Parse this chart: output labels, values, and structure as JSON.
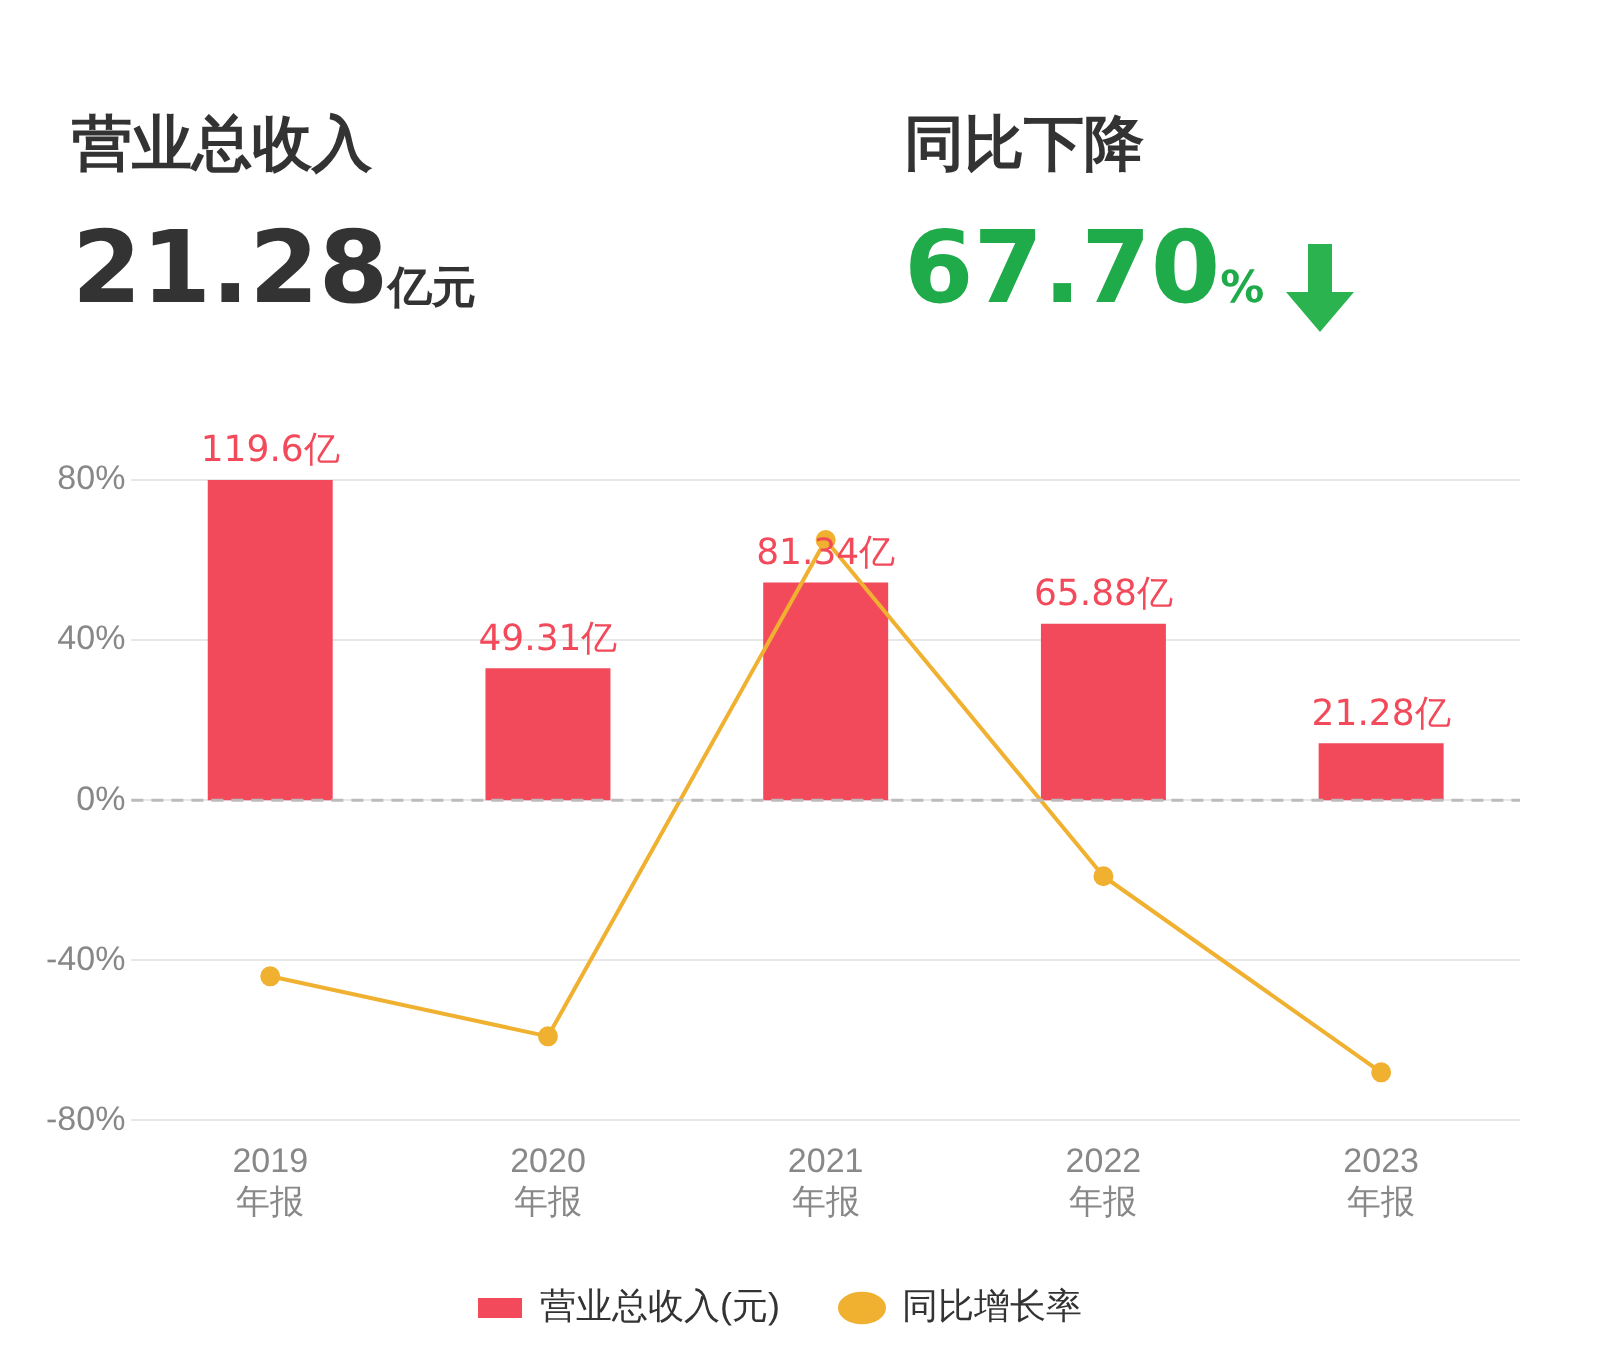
{
  "chart_data": {
    "type": "bar",
    "annotations": [
      "营业总收入",
      "21.28亿元",
      "同比下降",
      "67.70%"
    ],
    "categories": [
      "2019\n年报",
      "2020\n年报",
      "2021\n年报",
      "2022\n年报",
      "2023\n年报"
    ],
    "series": [
      {
        "name": "营业总收入(元)",
        "axis": "y2",
        "color": "#f24a5a",
        "values": [
          119.6,
          49.31,
          81.34,
          65.88,
          21.28
        ],
        "value_labels": [
          "119.6亿",
          "49.31亿",
          "81.34亿",
          "65.88亿",
          "21.28亿"
        ]
      },
      {
        "name": "同比增长率",
        "type": "line",
        "axis": "y",
        "color": "#f0b030",
        "values": [
          -44,
          -59,
          65,
          -19,
          -68
        ]
      }
    ],
    "ylim": [
      -80,
      80
    ],
    "yticks": [
      {
        "value": -80,
        "label": "-80%"
      },
      {
        "value": -40,
        "label": "-40%"
      },
      {
        "value": 0,
        "label": "0%"
      },
      {
        "value": 40,
        "label": "40%"
      },
      {
        "value": 80,
        "label": "80%"
      }
    ],
    "y2lim": [
      -119.6,
      119.6
    ],
    "ref_lines": [
      {
        "axis": "y",
        "value": 0,
        "line_style": "dashed",
        "color": "#bbbbbb"
      }
    ],
    "grid": "y",
    "legend": "bottom",
    "marker": "circle",
    "line_style": "solid"
  }
}
